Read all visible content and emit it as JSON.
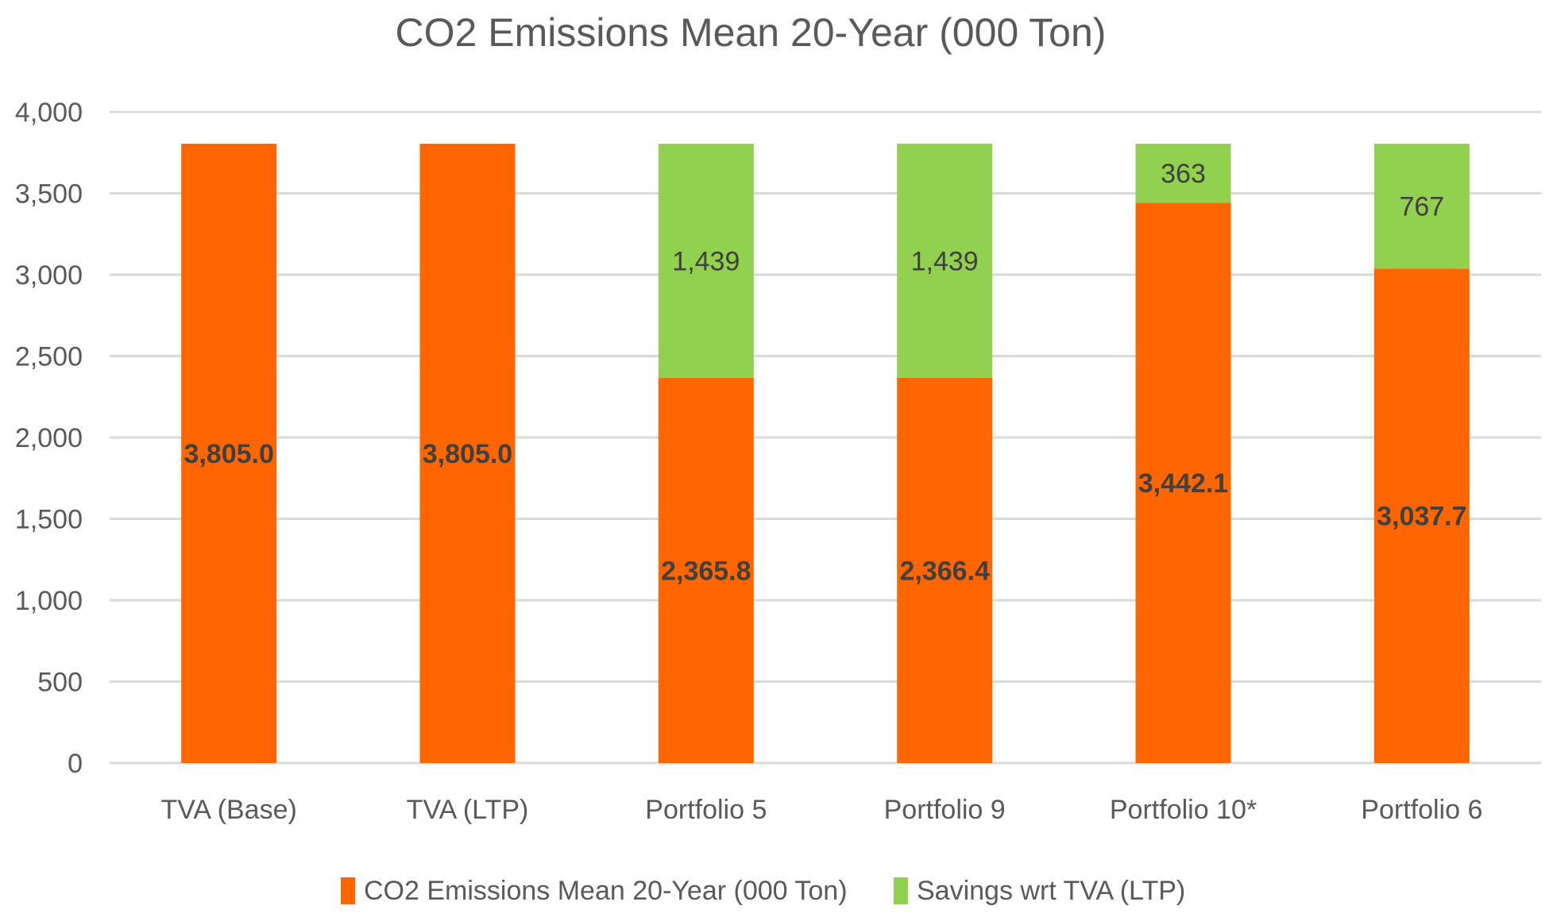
{
  "chart_data": {
    "type": "bar",
    "stacked": true,
    "title": "CO2 Emissions Mean 20-Year (000 Ton)",
    "xlabel": "",
    "ylabel": "",
    "ylim": [
      0,
      4000
    ],
    "yticks": [
      0,
      500,
      1000,
      1500,
      2000,
      2500,
      3000,
      3500,
      4000
    ],
    "ytick_labels": [
      "0",
      "500",
      "1,000",
      "1,500",
      "2,000",
      "2,500",
      "3,000",
      "3,500",
      "4,000"
    ],
    "grid": true,
    "legend_position": "bottom",
    "categories": [
      "TVA (Base)",
      "TVA (LTP)",
      "Portfolio 5",
      "Portfolio 9",
      "Portfolio 10*",
      "Portfolio 6"
    ],
    "series": [
      {
        "name": "CO2 Emissions Mean 20-Year (000 Ton)",
        "color": "#ff6600",
        "values": [
          3805.0,
          3805.0,
          2365.8,
          2366.4,
          3442.1,
          3037.7
        ],
        "labels": [
          "3,805.0",
          "3,805.0",
          "2,365.8",
          "2,366.4",
          "3,442.1",
          "3,037.7"
        ]
      },
      {
        "name": "Savings wrt TVA (LTP)",
        "color": "#92d050",
        "values": [
          0,
          0,
          1439,
          1439,
          363,
          767
        ],
        "labels": [
          "",
          "",
          "1,439",
          "1,439",
          "363",
          "767"
        ]
      }
    ]
  }
}
